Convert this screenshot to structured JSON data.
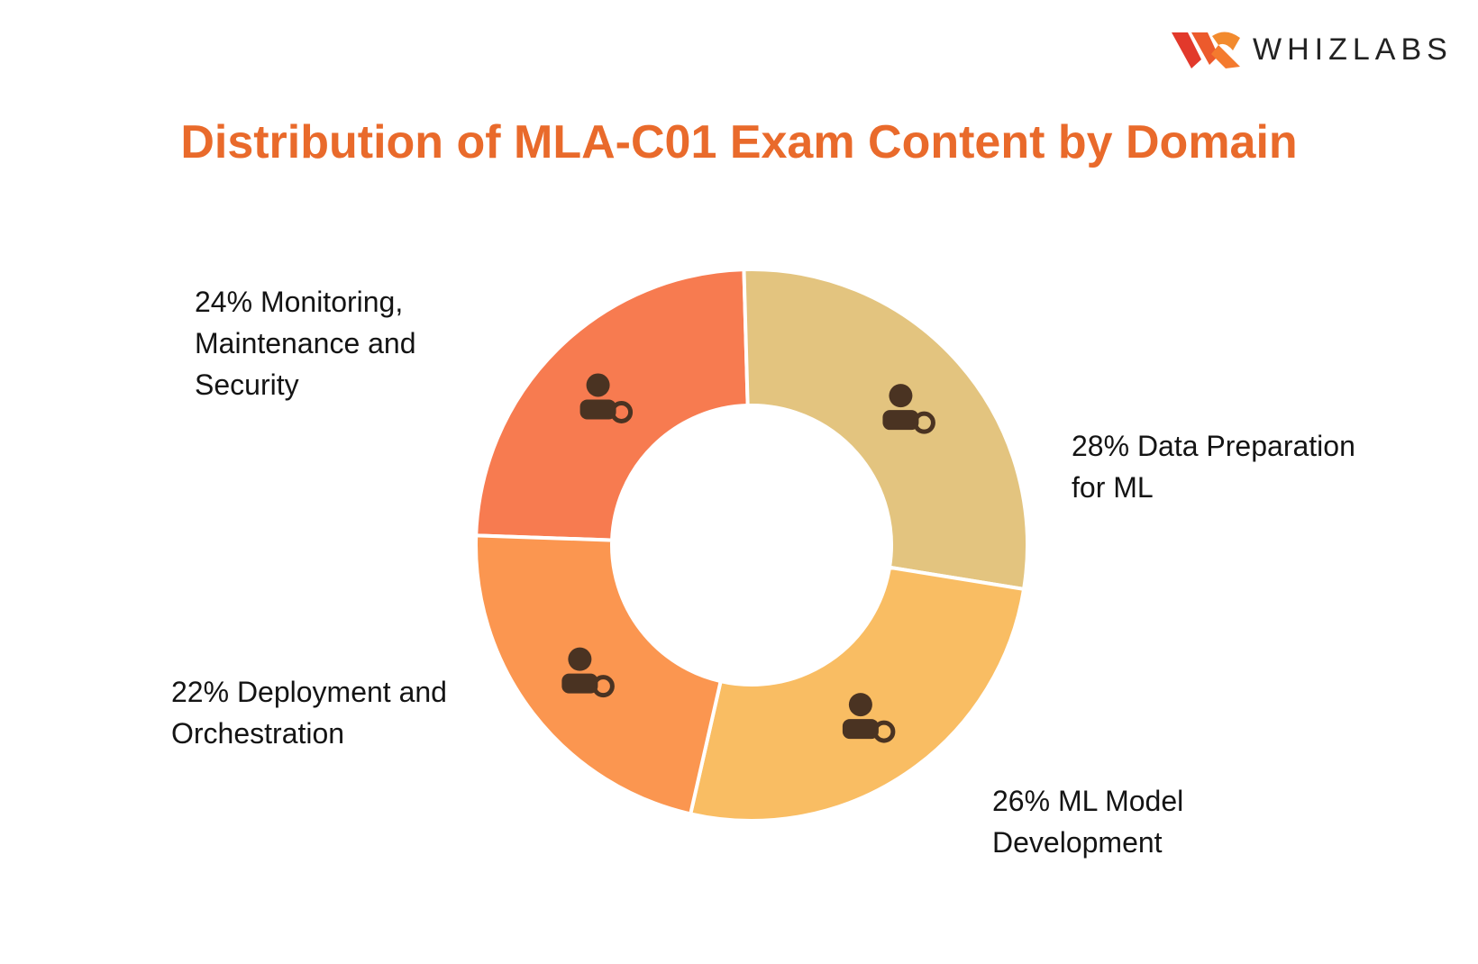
{
  "brand": "WHIZLABS",
  "chart_data": {
    "type": "donut",
    "title": "Distribution of MLA-C01 Exam Content by Domain",
    "categories": [
      "Monitoring, Maintenance and Security",
      "Data Preparation for ML",
      "ML Model Development",
      "Deployment and Orchestration"
    ],
    "values": [
      24,
      28,
      26,
      22
    ],
    "value_labels": [
      "24%",
      "28%",
      "26%",
      "22%"
    ],
    "colors": [
      "#f77b50",
      "#e3c47f",
      "#f9bd63",
      "#fb9650"
    ]
  }
}
